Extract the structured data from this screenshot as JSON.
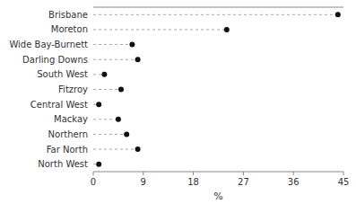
{
  "chart_data": {
    "type": "lollipop",
    "orientation": "horizontal",
    "categories": [
      "Brisbane",
      "Moreton",
      "Wide Bay-Burnett",
      "Darling Downs",
      "South West",
      "Fitzroy",
      "Central West",
      "Mackay",
      "Northern",
      "Far North",
      "North West"
    ],
    "values": [
      44.0,
      24.0,
      7.0,
      8.0,
      2.0,
      5.0,
      1.0,
      4.5,
      6.0,
      8.0,
      1.0
    ],
    "xlabel": "%",
    "xlim": [
      0,
      45
    ],
    "xticks": [
      0,
      9,
      18,
      27,
      36,
      45
    ],
    "color": "#111111",
    "marker": "circle",
    "line_style": "dashed",
    "grid": false
  }
}
